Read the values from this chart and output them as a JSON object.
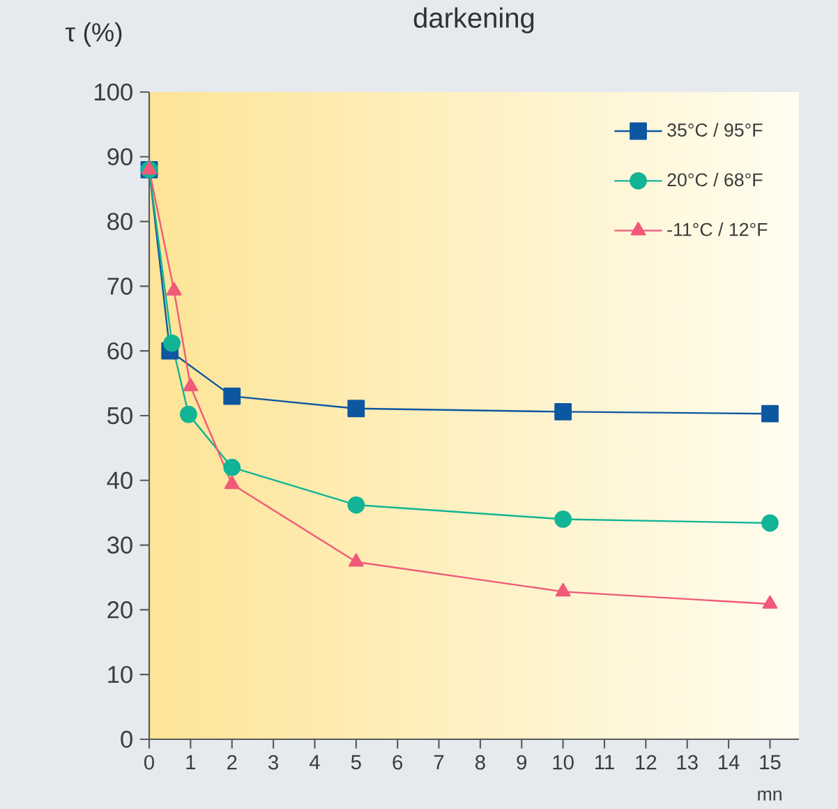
{
  "chart_data": {
    "type": "line",
    "title": "darkening",
    "xlabel": "mn",
    "ylabel": "τ (%)",
    "xlim": [
      0,
      15.7
    ],
    "xticks": [
      0,
      1,
      2,
      3,
      4,
      5,
      6,
      7,
      8,
      9,
      10,
      11,
      12,
      13,
      14,
      15
    ],
    "ylim": [
      0,
      100
    ],
    "yticks": [
      0,
      10,
      20,
      30,
      40,
      50,
      60,
      70,
      80,
      90,
      100
    ],
    "legend": "top right",
    "series": [
      {
        "name": "35°C / 95°F",
        "color": "#0d57a0",
        "marker": "square",
        "x": [
          0,
          0.5,
          2,
          5,
          10,
          15
        ],
        "values": [
          88,
          60,
          53,
          51.1,
          50.6,
          50.3
        ]
      },
      {
        "name": "20°C / 68°F",
        "color": "#12b495",
        "marker": "circle",
        "x": [
          0,
          0.55,
          0.95,
          2,
          5,
          10,
          15
        ],
        "values": [
          88,
          61.2,
          50.2,
          42,
          36.2,
          34,
          33.4
        ]
      },
      {
        "name": "-11°C / 12°F",
        "color": "#f05a78",
        "marker": "triangle",
        "x": [
          0,
          0.6,
          1,
          2,
          5,
          10,
          15
        ],
        "values": [
          88,
          69.3,
          54.5,
          39.4,
          27.4,
          22.8,
          20.9
        ]
      }
    ]
  }
}
